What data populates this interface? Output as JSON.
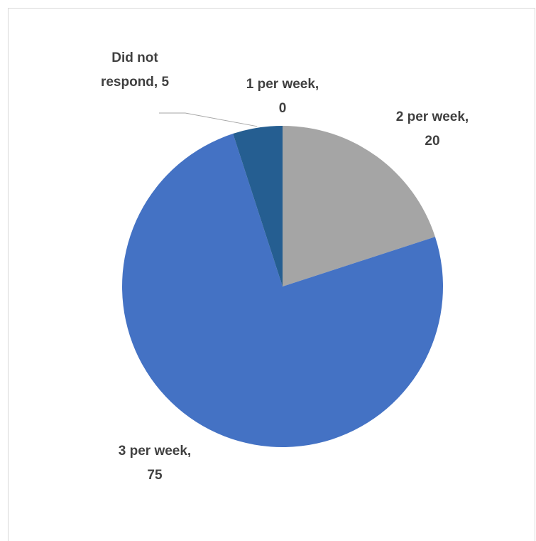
{
  "chart_data": {
    "type": "pie",
    "title": "",
    "categories": [
      "1 per week",
      "2 per week",
      "3 per week",
      "Did not respond"
    ],
    "values": [
      0,
      20,
      75,
      5
    ],
    "colors": [
      "#5b9bd5",
      "#a5a5a5",
      "#4472c4",
      "#255e91"
    ],
    "data_labels": [
      {
        "line1": "1 per week,",
        "line2": "0"
      },
      {
        "line1": "2 per week,",
        "line2": "20"
      },
      {
        "line1": "3 per week,",
        "line2": "75"
      },
      {
        "line1": "Did not",
        "line2": "respond, 5"
      }
    ],
    "legend": "none"
  }
}
